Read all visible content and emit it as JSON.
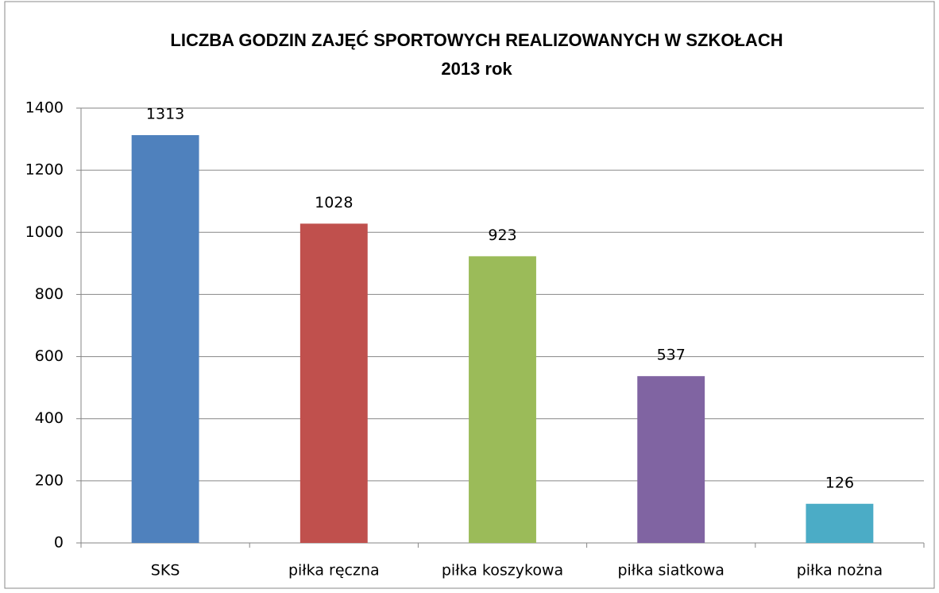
{
  "chart_data": {
    "type": "bar",
    "title": [
      "LICZBA GODZIN ZAJĘĆ SPORTOWYCH REALIZOWANYCH W SZKOŁACH",
      "2013 rok"
    ],
    "categories": [
      "SKS",
      "piłka ręczna",
      "piłka koszykowa",
      "piłka siatkowa",
      "piłka nożna"
    ],
    "values": [
      1313,
      1028,
      923,
      537,
      126
    ],
    "colors": [
      "#4f81bd",
      "#c0504d",
      "#9bbb59",
      "#8064a2",
      "#4bacc6"
    ],
    "ylim": [
      0,
      1400
    ],
    "yticks": [
      0,
      200,
      400,
      600,
      800,
      1000,
      1200,
      1400
    ],
    "grid": true
  }
}
